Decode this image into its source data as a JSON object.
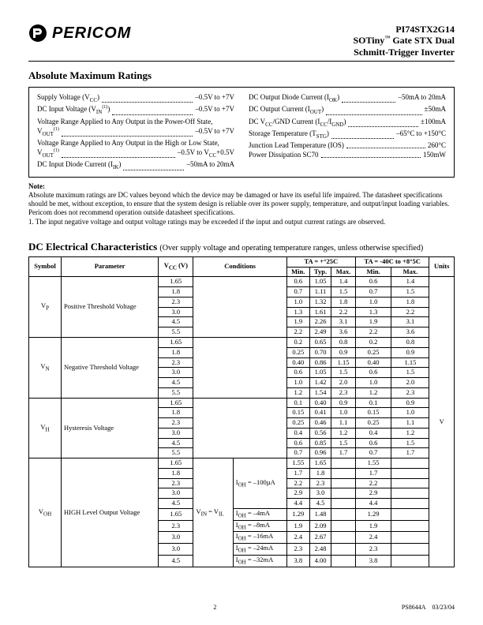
{
  "header": {
    "brand": "PERICOM",
    "part": "PI74STX2G14",
    "line2_a": "SOTiny",
    "line2_b": " Gate STX Dual",
    "line3": "Schmitt-Trigger Inverter",
    "tm": "™"
  },
  "amr": {
    "title": "Absolute Maximum Ratings",
    "left": [
      {
        "label": "Supply Voltage (V",
        "sub": "CC",
        "tail": ")",
        "val": "–0.5V to +7V"
      },
      {
        "label": "DC Input Voltage (V",
        "sub": "IN",
        "sup": "(1)",
        "tail": ")",
        "val": "–0.5V to +7V"
      },
      {
        "wrap": "Voltage Range Applied to Any Output in the Power-Off State,"
      },
      {
        "label": "V",
        "sub": "OUT",
        "sup": "(1)",
        "tail": "",
        "val": "–0.5V to +7V"
      },
      {
        "wrap": "Voltage Range Applied to Any Output in the High or Low State,"
      },
      {
        "label": "V",
        "sub": "OUT",
        "sup": "(1)",
        "tail": "",
        "val": "–0.5V to V",
        "valsub": "CC",
        "valtail": "+0.5V"
      },
      {
        "label": "DC Input Diode Current  (I",
        "sub": "IK",
        "tail": ")",
        "val": "–50mA to 20mA"
      }
    ],
    "right": [
      {
        "label": "DC Output Diode Current (I",
        "sub": "OK",
        "tail": ")",
        "val": "–50mA to 20mA"
      },
      {
        "label": "DC Output Current  (I",
        "sub": "OUT",
        "tail": ")",
        "val": "±50mA"
      },
      {
        "label": "DC V",
        "sub": "CC",
        "mid": "/GND Current (I",
        "sub2": "CC",
        "mid2": "/I",
        "sub3": "GND",
        "tail": ")",
        "val": "±100mA"
      },
      {
        "label": "Storage Temperature (T",
        "sub": "STG",
        "tail": ")",
        "val": "–65°C to +150°C"
      },
      {
        "label": "Junction Lead Temperature (IOS)",
        "val": "260°C"
      },
      {
        "label": "Power Dissipation SC70",
        "val": "150mW"
      }
    ]
  },
  "note": {
    "head": "Note:",
    "p1": "Absolute maximum ratings are DC values beyond which the device may be damaged or have its useful life impaired. The datasheet specifications should be met, without exception, to ensure that the system design is reliable over its power supply, temperature, and output/input loading variables. Pericom does not recommend operation outside datasheet specifications.",
    "p2": "1.  The input negative voltage and output voltage ratings may be exceeded if the input and output current ratings are observed."
  },
  "dc": {
    "title": "DC Electrical Characteristics ",
    "sub": "(Over supply voltage and operating temperature ranges, unless otherwise specified)",
    "head": {
      "symbol": "Symbol",
      "param": "Parameter",
      "vcc": "V",
      "vccsub": "CC",
      "vccunit": " (V)",
      "cond": "Conditions",
      "ta25": "TA = +°25C",
      "ta40": "TA = -40C to +8°5C",
      "min": "Min.",
      "typ": "Typ.",
      "max": "Max.",
      "units": "Units"
    },
    "vcc_set": [
      "1.65",
      "1.8",
      "2.3",
      "3.0",
      "4.5",
      "5.5"
    ],
    "unit_v": "V",
    "rows": [
      {
        "sym": "V",
        "symsub": "P",
        "param": "Positive Threshold Voltage",
        "d25": [
          [
            "0.6",
            "1.05",
            "1.4"
          ],
          [
            "0.7",
            "1.11",
            "1.5"
          ],
          [
            "1.0",
            "1.32",
            "1.8"
          ],
          [
            "1.3",
            "1.61",
            "2.2"
          ],
          [
            "1.9",
            "2.26",
            "3.1"
          ],
          [
            "2.2",
            "2.49",
            "3.6"
          ]
        ],
        "d40": [
          [
            "0.6",
            "1.4"
          ],
          [
            "0.7",
            "1.5"
          ],
          [
            "1.0",
            "1.8"
          ],
          [
            "1.3",
            "2.2"
          ],
          [
            "1.9",
            "3.1"
          ],
          [
            "2.2",
            "3.6"
          ]
        ]
      },
      {
        "sym": "V",
        "symsub": "N",
        "param": "Negative Threshold Voltage",
        "d25": [
          [
            "0.2",
            "0.65",
            "0.8"
          ],
          [
            "0.25",
            "0.70",
            "0.9"
          ],
          [
            "0.40",
            "0.86",
            "1.15"
          ],
          [
            "0.6",
            "1.05",
            "1.5"
          ],
          [
            "1.0",
            "1.42",
            "2.0"
          ],
          [
            "1.2",
            "1.54",
            "2.3"
          ]
        ],
        "d40": [
          [
            "0.2",
            "0.8"
          ],
          [
            "0.25",
            "0.9"
          ],
          [
            "0.40",
            "1.15"
          ],
          [
            "0.6",
            "1.5"
          ],
          [
            "1.0",
            "2.0"
          ],
          [
            "1.2",
            "2.3"
          ]
        ]
      },
      {
        "sym": "V",
        "symsub": "H",
        "param": "Hysteresis Voltage",
        "d25": [
          [
            "0.1",
            "0.40",
            "0.9"
          ],
          [
            "0.15",
            "0.41",
            "1.0"
          ],
          [
            "0.25",
            "0.46",
            "1.1"
          ],
          [
            "0.4",
            "0.56",
            "1.2"
          ],
          [
            "0.6",
            "0.85",
            "1.5"
          ],
          [
            "0.7",
            "0.96",
            "1.7"
          ]
        ],
        "d40": [
          [
            "0.1",
            "0.9"
          ],
          [
            "0.15",
            "1.0"
          ],
          [
            "0.25",
            "1.1"
          ],
          [
            "0.4",
            "1.2"
          ],
          [
            "0.6",
            "1.5"
          ],
          [
            "0.7",
            "1.7"
          ]
        ]
      }
    ],
    "voh": {
      "sym": "V",
      "symsub": "OH",
      "param": "HIGH Level Output Voltage",
      "cond1a": "V",
      "cond1asub": "IN",
      "cond1b": " = V",
      "cond1bsub": "IL",
      "cond2": "I",
      "cond2sub": "OH",
      "cond2b": " = –100µA",
      "top_vcc": [
        "1.65",
        "1.8",
        "2.3",
        "3.0",
        "4.5"
      ],
      "top_d25": [
        [
          "1.55",
          "1.65"
        ],
        [
          "1.7",
          "1.8"
        ],
        [
          "2.2",
          "2.3"
        ],
        [
          "2.9",
          "3.0"
        ],
        [
          "4.4",
          "4.5"
        ]
      ],
      "top_d40": [
        [
          "1.55"
        ],
        [
          "1.7"
        ],
        [
          "2.2"
        ],
        [
          "2.9"
        ],
        [
          "4.4"
        ]
      ],
      "bot_vcc": [
        "1.65",
        "2.3",
        "3.0",
        "3.0",
        "4.5"
      ],
      "bot_cond": [
        "I_OH = –4mA",
        "I_OH = –8mA",
        "I_OH = –16mA",
        "I_OH = –24mA",
        "I_OH = –32mA"
      ],
      "bot_cond_val": [
        "–4mA",
        "–8mA",
        "–16mA",
        "–24mA",
        "–32mA"
      ],
      "bot_d25": [
        [
          "1.29",
          "1.48"
        ],
        [
          "1.9",
          "2.09"
        ],
        [
          "2.4",
          "2.67"
        ],
        [
          "2.3",
          "2.48"
        ],
        [
          "3.8",
          "4.00"
        ]
      ],
      "bot_d40": [
        [
          "1.29"
        ],
        [
          "1.9"
        ],
        [
          "2.4"
        ],
        [
          "2.3"
        ],
        [
          "3.8"
        ]
      ]
    }
  },
  "footer": {
    "page": "2",
    "doc": "PS8644A",
    "date": "03/23/04"
  }
}
